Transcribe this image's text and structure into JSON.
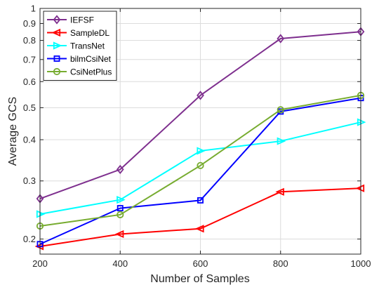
{
  "chart_data": {
    "type": "line",
    "xlabel": "Number of Samples",
    "ylabel": "Average GCS",
    "x": [
      200,
      400,
      600,
      800,
      1000
    ],
    "xlim": [
      200,
      1000
    ],
    "ylim": [
      0.18,
      1
    ],
    "yscale": "log",
    "x_ticks": [
      "200",
      "400",
      "600",
      "800",
      "1000"
    ],
    "y_ticks": [
      0.2,
      0.3,
      0.4,
      0.5,
      0.6,
      0.7,
      0.8,
      0.9,
      1
    ],
    "y_tick_labels": [
      "0.2",
      "0.3",
      "0.4",
      "0.5",
      "0.6",
      "0.7",
      "0.8",
      "0.9",
      "1"
    ],
    "grid": true,
    "legend_position": "top-left",
    "series": [
      {
        "name": "IEFSF",
        "values": [
          0.265,
          0.325,
          0.545,
          0.81,
          0.85
        ],
        "color": "#7E2F8E",
        "marker": "diamond"
      },
      {
        "name": "SampleDL",
        "values": [
          0.19,
          0.207,
          0.215,
          0.278,
          0.285
        ],
        "color": "#FF0000",
        "marker": "triangle-left"
      },
      {
        "name": "TransNet",
        "values": [
          0.238,
          0.263,
          0.37,
          0.396,
          0.452
        ],
        "color": "#00FFFF",
        "marker": "triangle-right"
      },
      {
        "name": "bilmCsiNet",
        "values": [
          0.193,
          0.248,
          0.262,
          0.487,
          0.535
        ],
        "color": "#0000FF",
        "marker": "square"
      },
      {
        "name": "CsiNetPlus",
        "values": [
          0.219,
          0.237,
          0.334,
          0.493,
          0.545
        ],
        "color": "#77AC30",
        "marker": "circle"
      }
    ]
  }
}
